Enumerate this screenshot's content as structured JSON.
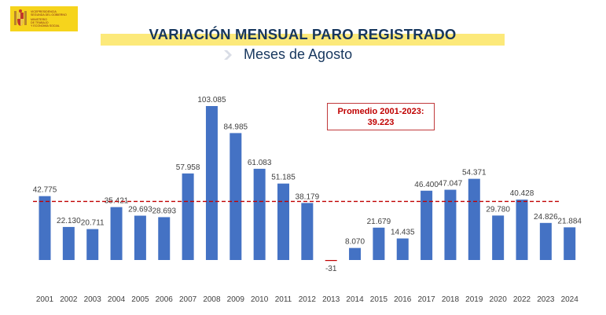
{
  "header": {
    "logo_lines": [
      "Vicepresidencia",
      "Segunda del Gobierno",
      "Ministerio",
      "de Trabajo",
      "y Economía Social"
    ],
    "title": "VARIACIÓN MENSUAL PARO REGISTRADO",
    "subtitle": "Meses de Agosto"
  },
  "average_box": {
    "label": "Promedio 2001-2023:",
    "value_text": "39.223"
  },
  "colors": {
    "bar": "#4472c4",
    "negative_bar": "#c00000",
    "average_line": "#c00000",
    "title_highlight": "#fce97a",
    "logo_bg": "#f6d41c",
    "title_text": "#17375e"
  },
  "chart_data": {
    "type": "bar",
    "title": "VARIACIÓN MENSUAL PARO REGISTRADO",
    "subtitle": "Meses de Agosto",
    "categories": [
      "2001",
      "2002",
      "2003",
      "2004",
      "2005",
      "2006",
      "2007",
      "2008",
      "2009",
      "2010",
      "2011",
      "2012",
      "2013",
      "2014",
      "2015",
      "2016",
      "2017",
      "2018",
      "2019",
      "2020",
      "2022",
      "2023",
      "2024"
    ],
    "values": [
      42775,
      22130,
      20711,
      35421,
      29693,
      28693,
      57958,
      103085,
      84985,
      61083,
      51185,
      38179,
      -31,
      8070,
      21679,
      14435,
      46400,
      47047,
      54371,
      29780,
      40428,
      24826,
      21884
    ],
    "value_labels": [
      "42.775",
      "22.130",
      "20.711",
      "35.421",
      "29.693",
      "28.693",
      "57.958",
      "103.085",
      "84.985",
      "61.083",
      "51.185",
      "38.179",
      "-31",
      "8.070",
      "21.679",
      "14.435",
      "46.400",
      "47.047",
      "54.371",
      "29.780",
      "40.428",
      "24.826",
      "21.884"
    ],
    "reference_line": {
      "label": "Promedio 2001-2023:",
      "value": 39223,
      "style": "dashed"
    },
    "ylim": [
      -10000,
      105000
    ],
    "grid": false,
    "xlabel": "",
    "ylabel": ""
  }
}
